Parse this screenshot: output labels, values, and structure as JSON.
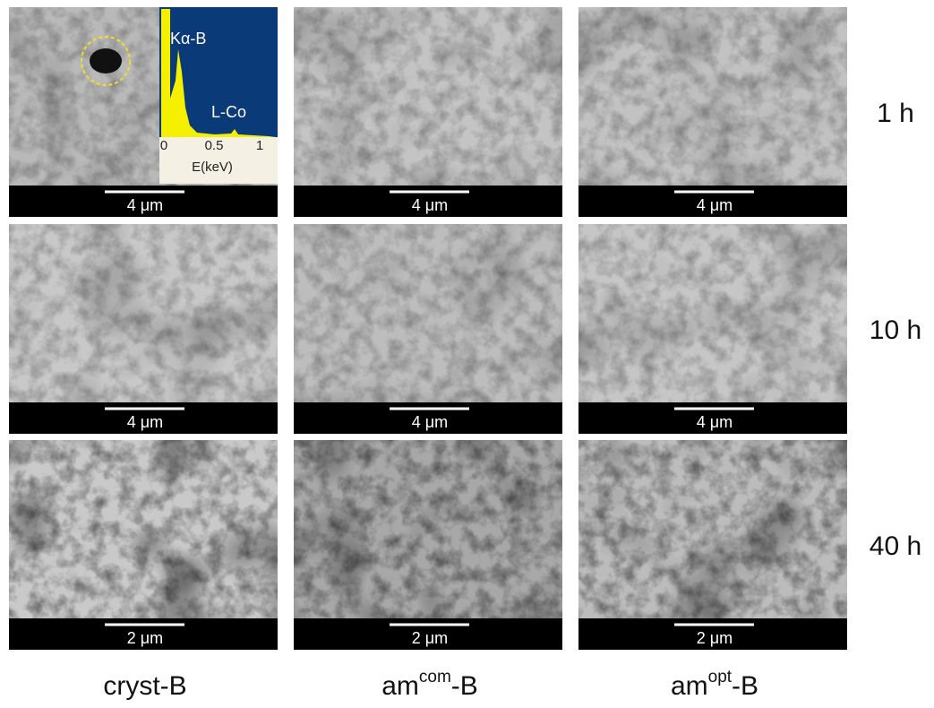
{
  "rows": [
    {
      "label": "1 h",
      "scales": [
        "4 μm",
        "4 μm",
        "4 μm"
      ]
    },
    {
      "label": "10 h",
      "scales": [
        "4 μm",
        "4 μm",
        "4 μm"
      ]
    },
    {
      "label": "40 h",
      "scales": [
        "2 μm",
        "2 μm",
        "2 μm"
      ]
    }
  ],
  "columns": [
    {
      "base": "cryst-B"
    },
    {
      "base": "am",
      "sup": "com",
      "suffix": "-B"
    },
    {
      "base": "am",
      "sup": "opt",
      "suffix": "-B"
    }
  ],
  "inset": {
    "peaks": [
      "Kα-B",
      "L-Co"
    ],
    "xticks": [
      "0",
      "0.5",
      "1"
    ],
    "xlabel": "E(keV)"
  }
}
